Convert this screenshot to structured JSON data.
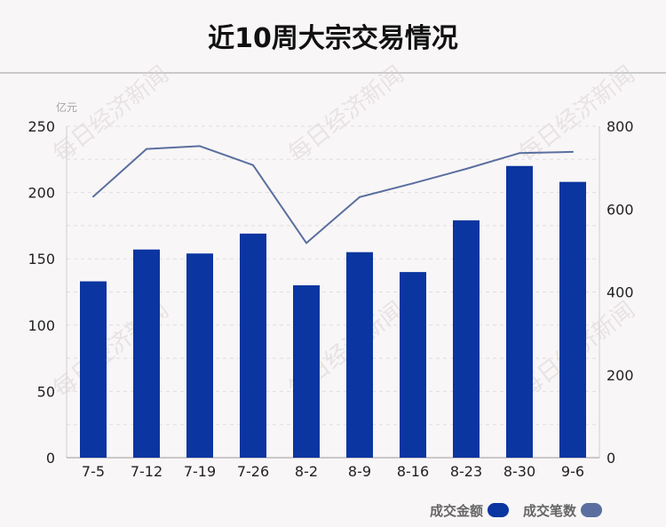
{
  "title": "近10周大宗交易情况",
  "watermark": "每日经济新闻",
  "chart_data": {
    "type": "bar+line",
    "categories": [
      "7-5",
      "7-12",
      "7-19",
      "7-26",
      "8-2",
      "8-9",
      "8-16",
      "8-23",
      "8-30",
      "9-6"
    ],
    "left_axis": {
      "unit_label": "亿元",
      "ticks": [
        "0",
        "50",
        "100",
        "150",
        "200",
        "250"
      ],
      "range": [
        0,
        250
      ]
    },
    "right_axis": {
      "ticks": [
        "0",
        "200",
        "400",
        "600",
        "800"
      ],
      "range": [
        0,
        800
      ]
    },
    "series": [
      {
        "name": "成交金额",
        "type": "bar",
        "axis": "left",
        "color": "#0b35a0",
        "values": [
          133,
          157,
          154,
          169,
          130,
          155,
          140,
          179,
          220,
          208
        ]
      },
      {
        "name": "成交笔数",
        "type": "line",
        "axis": "right",
        "color": "#5a6f9f",
        "values": [
          630,
          745,
          752,
          706,
          518,
          629,
          662,
          697,
          735,
          738
        ]
      }
    ],
    "grid": true,
    "legend_position": "bottom-right"
  }
}
